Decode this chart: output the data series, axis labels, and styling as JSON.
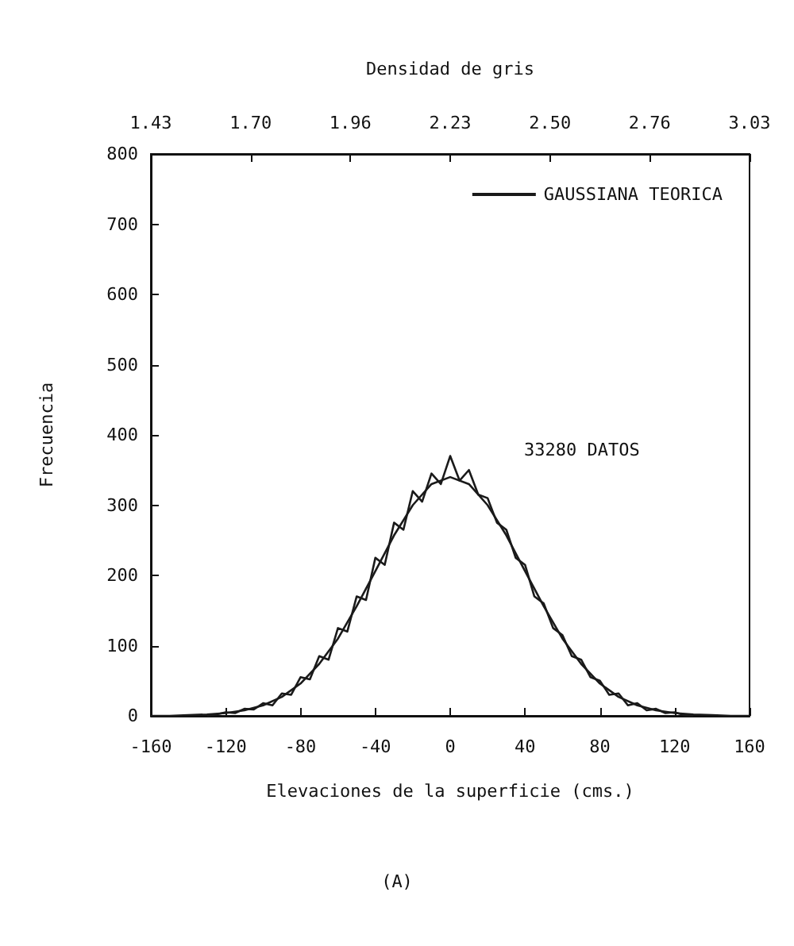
{
  "chart_data": {
    "type": "line",
    "xlabel": "Elevaciones de la superficie (cms.)",
    "ylabel": "Frecuencia",
    "x2label": "Densidad de gris",
    "xlim": [
      -160,
      160
    ],
    "xticks": [
      -160,
      -120,
      -80,
      -40,
      0,
      40,
      80,
      120,
      160
    ],
    "ylim": [
      0,
      800
    ],
    "yticks": [
      0,
      100,
      200,
      300,
      400,
      500,
      600,
      700,
      800
    ],
    "x2lim": [
      1.43,
      3.03
    ],
    "x2ticks": [
      1.43,
      {
        "value": 1.6967,
        "label": "1.70"
      },
      {
        "value": 1.9633,
        "label": "1.96"
      },
      2.23,
      {
        "value": 2.4967,
        "label": "2.50"
      },
      {
        "value": 2.7633,
        "label": "2.76"
      },
      3.03
    ],
    "legend": "top right",
    "marker": "none",
    "grid": false,
    "annotations": [
      "33280 DATOS",
      "(A)"
    ],
    "series": [
      {
        "color": "#1a1a1a",
        "x": [
          -130,
          -125,
          -120,
          -115,
          -110,
          -105,
          -100,
          -95,
          -90,
          -85,
          -80,
          -75,
          -70,
          -65,
          -60,
          -55,
          -50,
          -45,
          -40,
          -35,
          -30,
          -25,
          -20,
          -15,
          -10,
          -5,
          0,
          5,
          10,
          15,
          20,
          25,
          30,
          35,
          40,
          45,
          50,
          55,
          60,
          65,
          70,
          75,
          80,
          85,
          90,
          95,
          100,
          105,
          110,
          115,
          120,
          125,
          130
        ],
        "values": [
          0,
          2,
          5,
          4,
          10,
          9,
          18,
          15,
          32,
          30,
          55,
          52,
          85,
          80,
          125,
          120,
          170,
          165,
          225,
          215,
          275,
          265,
          320,
          305,
          345,
          330,
          370,
          335,
          350,
          315,
          310,
          275,
          265,
          225,
          215,
          170,
          160,
          125,
          115,
          85,
          80,
          55,
          50,
          30,
          32,
          15,
          18,
          8,
          10,
          4,
          5,
          1,
          0
        ]
      },
      {
        "name": "GAUSSIANA TEORICA",
        "color": "#1a1a1a",
        "x": [
          -160,
          -150,
          -140,
          -130,
          -120,
          -110,
          -100,
          -90,
          -80,
          -70,
          -60,
          -50,
          -40,
          -30,
          -20,
          -10,
          0,
          10,
          20,
          30,
          40,
          50,
          60,
          70,
          80,
          90,
          100,
          110,
          120,
          130,
          140,
          150,
          160
        ],
        "values": [
          0,
          0,
          1,
          2,
          4,
          8,
          15,
          27,
          46,
          74,
          110,
          156,
          206,
          257,
          300,
          330,
          340,
          330,
          300,
          257,
          206,
          156,
          110,
          74,
          46,
          27,
          15,
          8,
          4,
          2,
          1,
          0,
          0
        ]
      }
    ]
  }
}
